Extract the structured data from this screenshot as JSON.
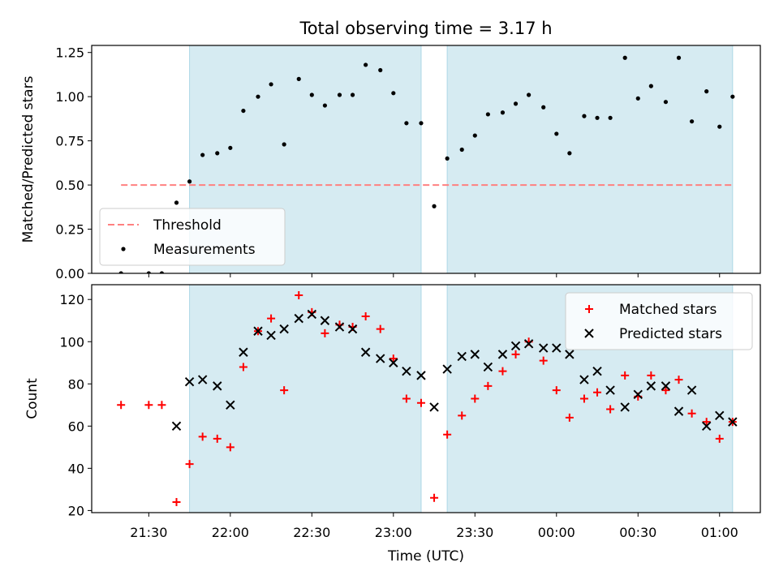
{
  "chart_data": {
    "title": "Total observing time = 3.17 h",
    "xlabel": "Time (UTC)",
    "x_unit": "hours after 00:00 UTC of the starting day",
    "xlim": [
      21.15,
      25.25
    ],
    "x_ticks": [
      {
        "value": 21.5,
        "label": "21:30"
      },
      {
        "value": 22.0,
        "label": "22:00"
      },
      {
        "value": 22.5,
        "label": "22:30"
      },
      {
        "value": 23.0,
        "label": "23:00"
      },
      {
        "value": 23.5,
        "label": "23:30"
      },
      {
        "value": 24.0,
        "label": "00:00"
      },
      {
        "value": 24.5,
        "label": "00:30"
      },
      {
        "value": 25.0,
        "label": "01:00"
      }
    ],
    "shaded_spans": [
      {
        "start": 21.75,
        "end": 23.17,
        "color": "#add8e6"
      },
      {
        "start": 23.33,
        "end": 25.08,
        "color": "#add8e6"
      }
    ],
    "panels": [
      {
        "type": "scatter",
        "ylabel": "Matched/Predicted stars",
        "ylim": [
          0,
          1.29
        ],
        "y_ticks": [
          0,
          0.25,
          0.5,
          0.75,
          1.0,
          1.25
        ],
        "y_tick_labels": [
          "0.00",
          "0.25",
          "0.50",
          "0.75",
          "1.00",
          "1.25"
        ],
        "legend_position": "lower-left",
        "threshold": {
          "name": "Threshold",
          "value": 0.5,
          "x_range": [
            21.33,
            25.08
          ],
          "color": "#ff8080"
        },
        "series": [
          {
            "name": "Measurements",
            "marker": "dot",
            "color": "#000000",
            "x": [
              21.33,
              21.5,
              21.58,
              21.67,
              21.75,
              21.83,
              21.92,
              22.0,
              22.08,
              22.17,
              22.25,
              22.33,
              22.42,
              22.5,
              22.58,
              22.67,
              22.75,
              22.83,
              22.92,
              23.0,
              23.08,
              23.17,
              23.25,
              23.33,
              23.42,
              23.5,
              23.58,
              23.67,
              23.75,
              23.83,
              23.92,
              24.0,
              24.08,
              24.17,
              24.25,
              24.33,
              24.42,
              24.5,
              24.58,
              24.67,
              24.75,
              24.83,
              24.92,
              25.0,
              25.08
            ],
            "y": [
              0.0,
              0.0,
              0.0,
              0.4,
              0.52,
              0.67,
              0.68,
              0.71,
              0.92,
              1.0,
              1.07,
              0.73,
              1.1,
              1.01,
              0.95,
              1.01,
              1.01,
              1.18,
              1.15,
              1.02,
              0.85,
              0.85,
              0.38,
              0.65,
              0.7,
              0.78,
              0.9,
              0.91,
              0.96,
              1.01,
              0.94,
              0.79,
              0.68,
              0.89,
              0.88,
              0.88,
              1.22,
              0.99,
              1.06,
              0.97,
              1.22,
              0.86,
              1.03,
              0.83,
              1.0
            ]
          }
        ]
      },
      {
        "type": "scatter",
        "ylabel": "Count",
        "ylim": [
          19,
          127
        ],
        "y_ticks": [
          20,
          40,
          60,
          80,
          100,
          120
        ],
        "y_tick_labels": [
          "20",
          "40",
          "60",
          "80",
          "100",
          "120"
        ],
        "legend_position": "upper-right",
        "series": [
          {
            "name": "Matched stars",
            "marker": "plus",
            "color": "#ff0000",
            "x": [
              21.33,
              21.5,
              21.58,
              21.67,
              21.75,
              21.83,
              21.92,
              22.0,
              22.08,
              22.17,
              22.25,
              22.33,
              22.42,
              22.5,
              22.58,
              22.67,
              22.75,
              22.83,
              22.92,
              23.0,
              23.08,
              23.17,
              23.25,
              23.33,
              23.42,
              23.5,
              23.58,
              23.67,
              23.75,
              23.83,
              23.92,
              24.0,
              24.08,
              24.17,
              24.25,
              24.33,
              24.42,
              24.5,
              24.58,
              24.67,
              24.75,
              24.83,
              24.92,
              25.0,
              25.08
            ],
            "y": [
              70,
              70,
              70,
              24,
              42,
              55,
              54,
              50,
              88,
              105,
              111,
              77,
              122,
              114,
              104,
              108,
              107,
              112,
              106,
              92,
              73,
              71,
              26,
              56,
              65,
              73,
              79,
              86,
              94,
              100,
              91,
              77,
              64,
              73,
              76,
              68,
              84,
              74,
              84,
              77,
              82,
              66,
              62,
              54,
              62
            ]
          },
          {
            "name": "Predicted stars",
            "marker": "x",
            "color": "#000000",
            "x": [
              21.67,
              21.75,
              21.83,
              21.92,
              22.0,
              22.08,
              22.17,
              22.25,
              22.33,
              22.42,
              22.5,
              22.58,
              22.67,
              22.75,
              22.83,
              22.92,
              23.0,
              23.08,
              23.17,
              23.25,
              23.33,
              23.42,
              23.5,
              23.58,
              23.67,
              23.75,
              23.83,
              23.92,
              24.0,
              24.08,
              24.17,
              24.25,
              24.33,
              24.42,
              24.5,
              24.58,
              24.67,
              24.75,
              24.83,
              24.92,
              25.0,
              25.08
            ],
            "y": [
              60,
              81,
              82,
              79,
              70,
              95,
              105,
              103,
              106,
              111,
              113,
              110,
              107,
              106,
              95,
              92,
              90,
              86,
              84,
              69,
              87,
              93,
              94,
              88,
              94,
              98,
              99,
              97,
              97,
              94,
              82,
              86,
              77,
              69,
              75,
              79,
              79,
              67,
              77,
              60,
              65,
              62
            ]
          }
        ]
      }
    ]
  }
}
